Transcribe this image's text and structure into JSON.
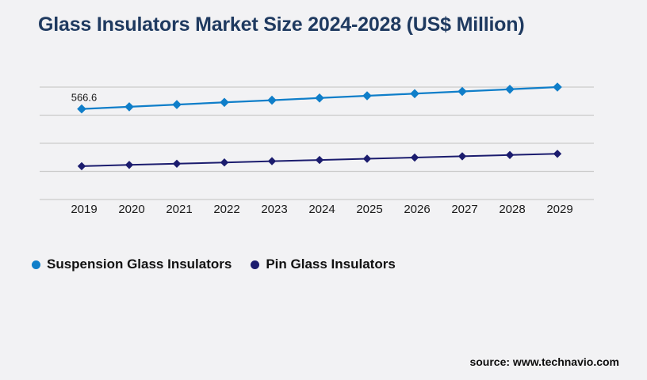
{
  "page": {
    "background": "#f2f2f4"
  },
  "header": {
    "title": "Glass Insulators Market Size 2024-2028 (US$ Million)",
    "title_color": "#1f3a60"
  },
  "footer": {
    "source": "source: www.technavio.com"
  },
  "legend": {
    "position": "bottom-left",
    "items": [
      {
        "label": "Suspension Glass Insulators",
        "color": "#0f7ec9"
      },
      {
        "label": "Pin Glass Insulators",
        "color": "#1b1c6e"
      }
    ]
  },
  "colors": {
    "gridline": "#cbcbcb",
    "axis_text": "#1a1a1a",
    "data_label_text": "#1a1a1a",
    "suspension_series": "#0f7ec9",
    "pin_series": "#1b1c6e"
  },
  "chart_data": {
    "type": "line",
    "title": "Glass Insulators Market Size 2024-2028 (US$ Million)",
    "x": [
      2019,
      2020,
      2021,
      2022,
      2023,
      2024,
      2025,
      2026,
      2027,
      2028,
      2029
    ],
    "xlabel": "",
    "ylabel": "",
    "ylim": [
      244,
      656
    ],
    "y_axis_labels_visible": false,
    "gridlines": "horizontal-only",
    "legend_position": "bottom-left",
    "series": [
      {
        "name": "Suspension Glass Insulators",
        "color": "#0f7ec9",
        "marker": "diamond",
        "values": [
          566.6,
          574.4,
          582.2,
          590.0,
          597.7,
          605.5,
          613.3,
          621.1,
          628.9,
          636.6,
          644.4
        ],
        "labeled_points": [
          {
            "x": 2019,
            "label": "566.6"
          }
        ]
      },
      {
        "name": "Pin Glass Insulators",
        "color": "#1b1c6e",
        "marker": "diamond",
        "values": [
          363.0,
          367.4,
          371.8,
          376.2,
          380.6,
          385.0,
          389.4,
          393.8,
          398.2,
          402.6,
          407.0
        ],
        "labeled_points": []
      }
    ],
    "values_note": "Only the 2019 Suspension value (566.6) is printed on the chart; all other values are estimated from plotted point positions against the unlabeled gridlines."
  }
}
